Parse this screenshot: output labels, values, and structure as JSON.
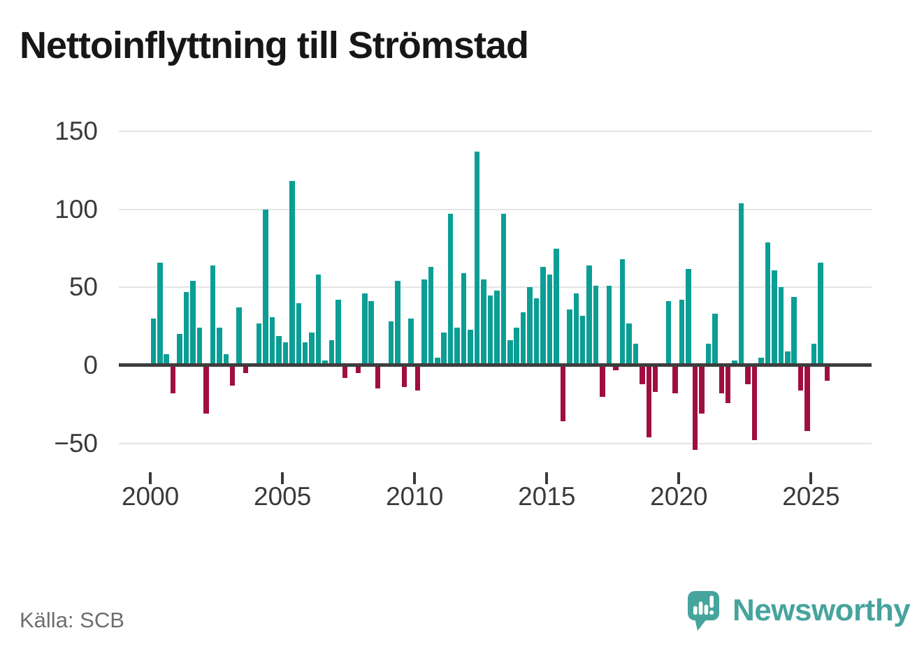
{
  "title": "Nettoinflyttning till Strömstad",
  "source": "Källa: SCB",
  "branding": {
    "name": "Newsworthy",
    "logo_icon": "speech-bubble-bar-chart-icon"
  },
  "colors": {
    "positive": "#0b9e95",
    "negative": "#a00e41",
    "grid": "#e4e4e4",
    "zero_line": "#3d3d3d",
    "axis_text": "#3a3a3a",
    "source_text": "#6e6e6e",
    "title_text": "#171717",
    "brand": "#46a49d",
    "background": "#ffffff"
  },
  "chart_data": {
    "type": "bar",
    "title": "Nettoinflyttning till Strömstad",
    "xlabel": "",
    "ylabel": "",
    "ylim": [
      -50,
      150
    ],
    "grid": "horizontal",
    "legend": "none",
    "y_ticks": [
      {
        "value": 150,
        "label": "150"
      },
      {
        "value": 100,
        "label": "100"
      },
      {
        "value": 50,
        "label": "50"
      },
      {
        "value": 0,
        "label": "0"
      },
      {
        "value": -50,
        "label": "−50"
      }
    ],
    "x_ticks": [
      {
        "label": "2000",
        "index": 0
      },
      {
        "label": "2005",
        "index": 20
      },
      {
        "label": "2010",
        "index": 40
      },
      {
        "label": "2015",
        "index": 60
      },
      {
        "label": "2020",
        "index": 80
      },
      {
        "label": "2025",
        "index": 100
      }
    ],
    "categories": [
      "2000Q1",
      "2000Q2",
      "2000Q3",
      "2000Q4",
      "2001Q1",
      "2001Q2",
      "2001Q3",
      "2001Q4",
      "2002Q1",
      "2002Q2",
      "2002Q3",
      "2002Q4",
      "2003Q1",
      "2003Q2",
      "2003Q3",
      "2003Q4",
      "2004Q1",
      "2004Q2",
      "2004Q3",
      "2004Q4",
      "2005Q1",
      "2005Q2",
      "2005Q3",
      "2005Q4",
      "2006Q1",
      "2006Q2",
      "2006Q3",
      "2006Q4",
      "2007Q1",
      "2007Q2",
      "2007Q3",
      "2007Q4",
      "2008Q1",
      "2008Q2",
      "2008Q3",
      "2008Q4",
      "2009Q1",
      "2009Q2",
      "2009Q3",
      "2009Q4",
      "2010Q1",
      "2010Q2",
      "2010Q3",
      "2010Q4",
      "2011Q1",
      "2011Q2",
      "2011Q3",
      "2011Q4",
      "2012Q1",
      "2012Q2",
      "2012Q3",
      "2012Q4",
      "2013Q1",
      "2013Q2",
      "2013Q3",
      "2013Q4",
      "2014Q1",
      "2014Q2",
      "2014Q3",
      "2014Q4",
      "2015Q1",
      "2015Q2",
      "2015Q3",
      "2015Q4",
      "2016Q1",
      "2016Q2",
      "2016Q3",
      "2016Q4",
      "2017Q1",
      "2017Q2",
      "2017Q3",
      "2017Q4",
      "2018Q1",
      "2018Q2",
      "2018Q3",
      "2018Q4",
      "2019Q1",
      "2019Q2",
      "2019Q3",
      "2019Q4",
      "2020Q1",
      "2020Q2",
      "2020Q3",
      "2020Q4",
      "2021Q1",
      "2021Q2",
      "2021Q3",
      "2021Q4",
      "2022Q1",
      "2022Q2",
      "2022Q3",
      "2022Q4",
      "2023Q1",
      "2023Q2",
      "2023Q3",
      "2023Q4",
      "2024Q1",
      "2024Q2",
      "2024Q3",
      "2024Q4",
      "2025Q1",
      "2025Q2",
      "2025Q3"
    ],
    "values": [
      30,
      66,
      7,
      -18,
      20,
      47,
      54,
      24,
      -31,
      64,
      24,
      7,
      -13,
      37,
      -5,
      0,
      27,
      100,
      31,
      19,
      15,
      118,
      40,
      15,
      21,
      58,
      3,
      16,
      42,
      -8,
      0,
      -5,
      46,
      41,
      -15,
      0,
      28,
      54,
      -14,
      30,
      -16,
      55,
      63,
      5,
      21,
      97,
      24,
      59,
      23,
      137,
      55,
      45,
      48,
      97,
      16,
      24,
      34,
      50,
      43,
      63,
      58,
      75,
      -36,
      36,
      46,
      32,
      64,
      51,
      -20,
      51,
      -3,
      68,
      27,
      14,
      -12,
      -46,
      -17,
      0,
      41,
      -18,
      42,
      62,
      -54,
      -31,
      14,
      33,
      -18,
      -24,
      3,
      104,
      -12,
      -48,
      5,
      79,
      61,
      50,
      9,
      44,
      -16,
      -42,
      14,
      66,
      -10
    ]
  }
}
